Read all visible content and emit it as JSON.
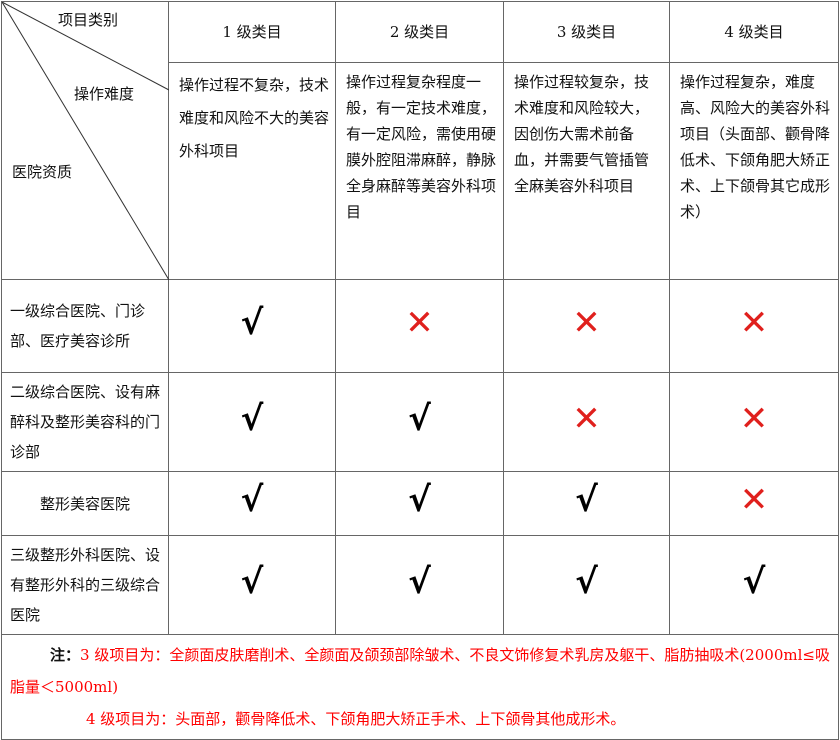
{
  "corner": {
    "top": "项目类别",
    "middle": "操作难度",
    "bottom": "医院资质"
  },
  "columns": [
    {
      "title": "1 级类目",
      "desc": "操作过程不复杂，技术难度和风险不大的美容外科项目"
    },
    {
      "title": "2 级类目",
      "desc": "操作过程复杂程度一般，有一定技术难度，有一定风险，需使用硬膜外腔阻滞麻醉，静脉全身麻醉等美容外科项目"
    },
    {
      "title": "3 级类目",
      "desc": "操作过程较复杂，技术难度和风险较大，因创伤大需术前备血，并需要气管插管全麻美容外科项目"
    },
    {
      "title": "4 级类目",
      "desc": "操作过程复杂，难度高、风险大的美容外科项目（头面部、颧骨降低术、下颌角肥大矫正术、上下颌骨其它成形术）"
    }
  ],
  "rows": [
    {
      "label": "一级综合医院、门诊部、医疗美容诊所",
      "marks": [
        "check",
        "cross",
        "cross",
        "cross"
      ]
    },
    {
      "label": "二级综合医院、设有麻醉科及整形美容科的门诊部",
      "marks": [
        "check",
        "check",
        "cross",
        "cross"
      ]
    },
    {
      "label": "整形美容医院",
      "marks": [
        "check",
        "check",
        "check",
        "cross"
      ]
    },
    {
      "label": "三级整形外科医院、设有整形外科的三级综合医院",
      "marks": [
        "check",
        "check",
        "check",
        "check"
      ]
    }
  ],
  "symbols": {
    "check": "√",
    "cross": "✕"
  },
  "colors": {
    "cross": "#e0201d",
    "note": "#ff0000"
  },
  "note": {
    "prefix": "注：",
    "line1": "3 级项目为：全颜面皮肤磨削术、全颜面及颌颈部除皱术、不良文饰修复术乳房及躯干、脂肪抽吸术(2000ml≤吸脂量＜5000ml)",
    "line2": "4 级项目为：头面部，颧骨降低术、下颌角肥大矫正手术、上下颌骨其他成形术。"
  }
}
